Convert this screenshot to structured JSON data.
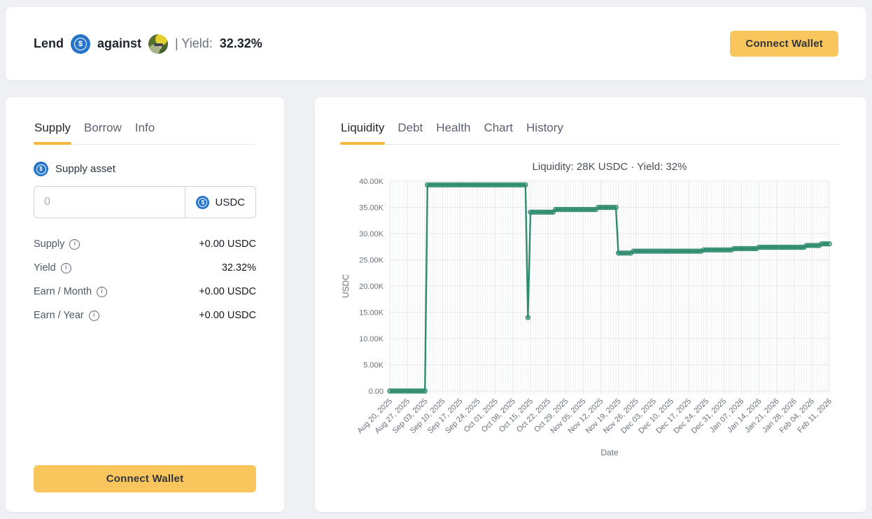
{
  "colors": {
    "accent_underline": "#f6b93f",
    "button_amber": "#f9c55d",
    "usdc_blue": "#2775ca",
    "chart_line": "#2e8b6e"
  },
  "icons": {
    "usdc_glyph": "$",
    "info_glyph": "i"
  },
  "header": {
    "lend_label": "Lend",
    "against_label": "against",
    "yield_label": "| Yield:",
    "yield_value": "32.32%",
    "connect_wallet_label": "Connect Wallet"
  },
  "supply_panel": {
    "tabs": [
      {
        "label": "Supply",
        "active": true
      },
      {
        "label": "Borrow",
        "active": false
      },
      {
        "label": "Info",
        "active": false
      }
    ],
    "asset_label": "Supply asset",
    "input": {
      "value": "",
      "placeholder": "0"
    },
    "asset_selector": {
      "token": "USDC"
    },
    "stats": [
      {
        "label": "Supply",
        "value": "+0.00 USDC"
      },
      {
        "label": "Yield",
        "value": "32.32%"
      },
      {
        "label": "Earn / Month",
        "value": "+0.00 USDC"
      },
      {
        "label": "Earn / Year",
        "value": "+0.00 USDC"
      }
    ],
    "connect_wallet_label": "Connect Wallet"
  },
  "chart_panel": {
    "tabs": [
      {
        "label": "Liquidity",
        "active": true
      },
      {
        "label": "Debt",
        "active": false
      },
      {
        "label": "Health",
        "active": false
      },
      {
        "label": "Chart",
        "active": false
      },
      {
        "label": "History",
        "active": false
      }
    ]
  },
  "chart_data": {
    "type": "line",
    "title": "Liquidity: 28K USDC · Yield: 32%",
    "xlabel": "Date",
    "ylabel": "USDC",
    "ylim": [
      0,
      40000
    ],
    "y_step": 5000,
    "y_ticks": [
      "0.00",
      "5.00K",
      "10.00K",
      "15.00K",
      "20.00K",
      "25.00K",
      "30.00K",
      "35.00K",
      "40.00K"
    ],
    "x_start": "2025-08-20",
    "x_end": "2026-02-11",
    "x_tick_interval_days": 7,
    "x_ticks": [
      "Aug 20, 2025",
      "Aug 27, 2025",
      "Sep 03, 2025",
      "Sep 10, 2025",
      "Sep 17, 2025",
      "Sep 24, 2025",
      "Oct 01, 2025",
      "Oct 08, 2025",
      "Oct 15, 2025",
      "Oct 22, 2025",
      "Oct 29, 2025",
      "Nov 05, 2025",
      "Nov 12, 2025",
      "Nov 19, 2025",
      "Nov 26, 2025",
      "Dec 03, 2025",
      "Dec 10, 2025",
      "Dec 17, 2025",
      "Dec 24, 2025",
      "Dec 31, 2025",
      "Jan 07, 2026",
      "Jan 14, 2026",
      "Jan 21, 2026",
      "Jan 28, 2026",
      "Feb 04, 2026",
      "Feb 11, 2026"
    ],
    "grid": true,
    "legend": false,
    "markers": true,
    "line_color": "#2e8b6e",
    "series": [
      {
        "name": "Liquidity (USDC)",
        "segments": [
          {
            "start": "2025-08-20",
            "end": "2025-09-03",
            "value": 0
          },
          {
            "start": "2025-09-04",
            "end": "2025-10-13",
            "value": 39300
          },
          {
            "start": "2025-10-14",
            "end": "2025-10-14",
            "value": 14000
          },
          {
            "start": "2025-10-15",
            "end": "2025-10-24",
            "value": 34100
          },
          {
            "start": "2025-10-25",
            "end": "2025-11-10",
            "value": 34600
          },
          {
            "start": "2025-11-11",
            "end": "2025-11-18",
            "value": 35000
          },
          {
            "start": "2025-11-19",
            "end": "2025-11-24",
            "value": 26300
          },
          {
            "start": "2025-11-25",
            "end": "2025-12-22",
            "value": 26650
          },
          {
            "start": "2025-12-23",
            "end": "2026-01-03",
            "value": 26900
          },
          {
            "start": "2026-01-04",
            "end": "2026-01-13",
            "value": 27150
          },
          {
            "start": "2026-01-14",
            "end": "2026-02-01",
            "value": 27400
          },
          {
            "start": "2026-02-02",
            "end": "2026-02-07",
            "value": 27750
          },
          {
            "start": "2026-02-08",
            "end": "2026-02-11",
            "value": 28050
          }
        ]
      }
    ]
  }
}
